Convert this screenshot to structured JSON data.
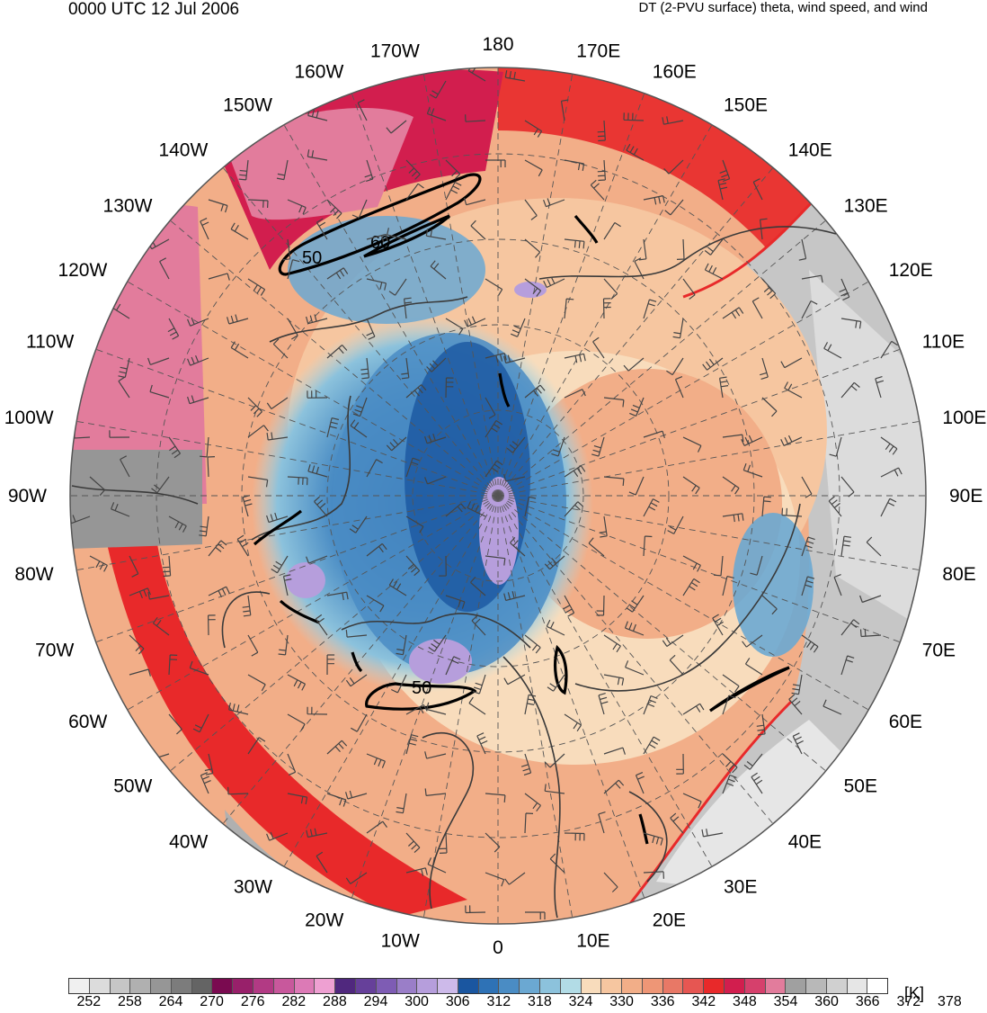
{
  "header": {
    "time_label": "0000 UTC 12 Jul 2006",
    "product_label": "DT (2-PVU surface) theta, wind speed, and wind"
  },
  "map": {
    "projection": "north-polar-stereographic",
    "longitude_labels": [
      {
        "text": "180",
        "lon": 180
      },
      {
        "text": "170E",
        "lon": 170
      },
      {
        "text": "160E",
        "lon": 160
      },
      {
        "text": "150E",
        "lon": 150
      },
      {
        "text": "140E",
        "lon": 140
      },
      {
        "text": "130E",
        "lon": 130
      },
      {
        "text": "120E",
        "lon": 120
      },
      {
        "text": "110E",
        "lon": 110
      },
      {
        "text": "100E",
        "lon": 100
      },
      {
        "text": "90E",
        "lon": 90
      },
      {
        "text": "80E",
        "lon": 80
      },
      {
        "text": "70E",
        "lon": 70
      },
      {
        "text": "60E",
        "lon": 60
      },
      {
        "text": "50E",
        "lon": 50
      },
      {
        "text": "40E",
        "lon": 40
      },
      {
        "text": "30E",
        "lon": 30
      },
      {
        "text": "20E",
        "lon": 20
      },
      {
        "text": "10E",
        "lon": 10
      },
      {
        "text": "0",
        "lon": 0
      },
      {
        "text": "10W",
        "lon": -10
      },
      {
        "text": "20W",
        "lon": -20
      },
      {
        "text": "30W",
        "lon": -30
      },
      {
        "text": "40W",
        "lon": -40
      },
      {
        "text": "50W",
        "lon": -50
      },
      {
        "text": "60W",
        "lon": -60
      },
      {
        "text": "70W",
        "lon": -70
      },
      {
        "text": "80W",
        "lon": -80
      },
      {
        "text": "90W",
        "lon": -90
      },
      {
        "text": "100W",
        "lon": -100
      },
      {
        "text": "110W",
        "lon": -110
      },
      {
        "text": "120W",
        "lon": -120
      },
      {
        "text": "130W",
        "lon": -130
      },
      {
        "text": "140W",
        "lon": -140
      },
      {
        "text": "150W",
        "lon": -150
      },
      {
        "text": "160W",
        "lon": -160
      },
      {
        "text": "170W",
        "lon": -170
      }
    ],
    "wind_speed_contour_labels": [
      "50",
      "60",
      "50"
    ],
    "colors": {
      "land_outline": "#3a3a3a",
      "jet_contour": "#000000",
      "warm_red": "#e8292a",
      "cold_blue": "#2b6cb0"
    }
  },
  "colorbar": {
    "unit_label": "[K]",
    "tick_labels": [
      "252",
      "258",
      "264",
      "270",
      "276",
      "282",
      "288",
      "294",
      "300",
      "306",
      "312",
      "318",
      "324",
      "330",
      "336",
      "342",
      "348",
      "354",
      "360",
      "366",
      "372",
      "378"
    ],
    "colors": [
      "#f0f0f0",
      "#dcdcdc",
      "#c6c6c6",
      "#b0b0b0",
      "#969696",
      "#7c7c7c",
      "#646464",
      "#7a0a50",
      "#98206a",
      "#b23a84",
      "#c8589c",
      "#dc7ab6",
      "#eea0d2",
      "#50287e",
      "#66409a",
      "#7e5cb4",
      "#9a7ec8",
      "#b69edc",
      "#cdbaea",
      "#1a56a0",
      "#2e72b6",
      "#4a8cc4",
      "#6ba8d2",
      "#8cc2dc",
      "#b2dce6",
      "#f8dcbc",
      "#f6c6a0",
      "#f2ae88",
      "#ee9676",
      "#e87866",
      "#e65652",
      "#e8292a",
      "#d21e4e",
      "#d6406c",
      "#e27c9c",
      "#a0a0a0",
      "#b8b8b8",
      "#d0d0d0",
      "#e6e6e6",
      "#ffffff"
    ]
  }
}
